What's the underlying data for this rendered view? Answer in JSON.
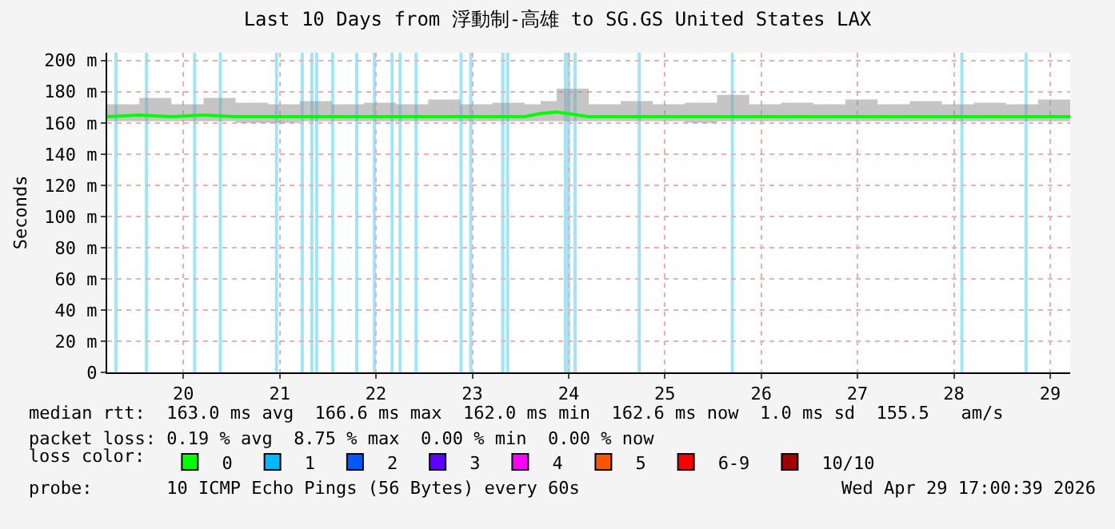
{
  "chart_data": {
    "type": "line",
    "title": "Last 10 Days from 浮動制-高雄 to SG.GS United States LAX",
    "ylabel": "Seconds",
    "legend_title": "loss color:",
    "legend": "bottom",
    "grid": true,
    "marker": "none",
    "line_style": "solid",
    "xlim": [
      "2026-04-19T05:00",
      "2026-04-29T05:00"
    ],
    "xticks": [
      {
        "value": "2026-04-20",
        "label": "20"
      },
      {
        "value": "2026-04-21",
        "label": "21"
      },
      {
        "value": "2026-04-22",
        "label": "22"
      },
      {
        "value": "2026-04-23",
        "label": "23"
      },
      {
        "value": "2026-04-24",
        "label": "24"
      },
      {
        "value": "2026-04-25",
        "label": "25"
      },
      {
        "value": "2026-04-26",
        "label": "26"
      },
      {
        "value": "2026-04-27",
        "label": "27"
      },
      {
        "value": "2026-04-28",
        "label": "28"
      },
      {
        "value": "2026-04-29",
        "label": "29"
      }
    ],
    "ylim": [
      0,
      205
    ],
    "yticks": [
      0,
      {
        "value": 20,
        "label": "20 m"
      },
      {
        "value": 40,
        "label": "40 m"
      },
      {
        "value": 60,
        "label": "60 m"
      },
      {
        "value": 80,
        "label": "80 m"
      },
      {
        "value": 100,
        "label": "100 m"
      },
      {
        "value": 120,
        "label": "120 m"
      },
      {
        "value": 140,
        "label": "140 m"
      },
      {
        "value": 160,
        "label": "160 m"
      },
      {
        "value": 180,
        "label": "180 m"
      },
      {
        "value": 200,
        "label": "200 m"
      }
    ],
    "x": [
      "2026-04-19T05:00",
      "2026-04-19T13:00",
      "2026-04-19T21:00",
      "2026-04-20T05:00",
      "2026-04-20T13:00",
      "2026-04-20T21:00",
      "2026-04-21T05:00",
      "2026-04-21T13:00",
      "2026-04-21T21:00",
      "2026-04-22T05:00",
      "2026-04-22T13:00",
      "2026-04-22T21:00",
      "2026-04-23T05:00",
      "2026-04-23T13:00",
      "2026-04-23T17:00",
      "2026-04-23T21:00",
      "2026-04-24T05:00",
      "2026-04-24T13:00",
      "2026-04-24T21:00",
      "2026-04-25T05:00",
      "2026-04-25T13:00",
      "2026-04-25T21:00",
      "2026-04-26T05:00",
      "2026-04-26T13:00",
      "2026-04-26T21:00",
      "2026-04-27T05:00",
      "2026-04-27T13:00",
      "2026-04-27T21:00",
      "2026-04-28T05:00",
      "2026-04-28T13:00",
      "2026-04-28T21:00",
      "2026-04-29T05:00"
    ],
    "series": [
      {
        "name": "0",
        "color": "#00ff00",
        "values": [
          164,
          165,
          164,
          165,
          164,
          164,
          164,
          164,
          164,
          164,
          164,
          164,
          164,
          164,
          166,
          167,
          164,
          164,
          164,
          164,
          164,
          164,
          164,
          164,
          164,
          164,
          164,
          164,
          164,
          164,
          164,
          164
        ],
        "lower": [
          161,
          161,
          161,
          161,
          160,
          160,
          161,
          161,
          161,
          161,
          161,
          161,
          161,
          161,
          161,
          161,
          161,
          161,
          161,
          160,
          161,
          161,
          161,
          161,
          161,
          161,
          161,
          161,
          161,
          161,
          161,
          161
        ],
        "upper": [
          172,
          176,
          172,
          176,
          173,
          172,
          174,
          172,
          173,
          172,
          175,
          172,
          173,
          172,
          174,
          182,
          172,
          174,
          172,
          173,
          178,
          172,
          173,
          172,
          175,
          172,
          174,
          172,
          173,
          172,
          175,
          172
        ]
      },
      {
        "name": "1",
        "color": "#00b8ff",
        "values": [
          null,
          null,
          null,
          null,
          null,
          null,
          null,
          null,
          null,
          null,
          null,
          null,
          null,
          null,
          null,
          null,
          null,
          null,
          null,
          null,
          null,
          null,
          null,
          null,
          null,
          null,
          null,
          null,
          null,
          null,
          null,
          null
        ]
      },
      {
        "name": "2",
        "color": "#0059ff",
        "values": [
          null,
          null,
          null,
          null,
          null,
          null,
          null,
          null,
          null,
          null,
          null,
          null,
          null,
          null,
          null,
          null,
          null,
          null,
          null,
          null,
          null,
          null,
          null,
          null,
          null,
          null,
          null,
          null,
          null,
          null,
          null,
          null
        ]
      },
      {
        "name": "3",
        "color": "#5e00ff",
        "values": [
          null,
          null,
          null,
          null,
          null,
          null,
          null,
          null,
          null,
          null,
          null,
          null,
          null,
          null,
          null,
          null,
          null,
          null,
          null,
          null,
          null,
          null,
          null,
          null,
          null,
          null,
          null,
          null,
          null,
          null,
          null,
          null
        ]
      },
      {
        "name": "4",
        "color": "#ff00ff",
        "values": [
          null,
          null,
          null,
          null,
          null,
          null,
          null,
          null,
          null,
          null,
          null,
          null,
          null,
          null,
          null,
          null,
          null,
          null,
          null,
          null,
          null,
          null,
          null,
          null,
          null,
          null,
          null,
          null,
          null,
          null,
          null,
          null
        ]
      },
      {
        "name": "5",
        "color": "#ff5500",
        "values": [
          null,
          null,
          null,
          null,
          null,
          null,
          null,
          null,
          null,
          null,
          null,
          null,
          null,
          null,
          null,
          null,
          null,
          null,
          null,
          null,
          null,
          null,
          null,
          null,
          null,
          null,
          null,
          null,
          null,
          null,
          null,
          null
        ]
      },
      {
        "name": "6-9",
        "color": "#ff0000",
        "values": [
          null,
          null,
          null,
          null,
          null,
          null,
          null,
          null,
          null,
          null,
          null,
          null,
          null,
          null,
          null,
          null,
          null,
          null,
          null,
          null,
          null,
          null,
          null,
          null,
          null,
          null,
          null,
          null,
          null,
          null,
          null,
          null
        ]
      },
      {
        "name": "10/10",
        "color": "#a10000",
        "values": [
          null,
          null,
          null,
          null,
          null,
          null,
          null,
          null,
          null,
          null,
          null,
          null,
          null,
          null,
          null,
          null,
          null,
          null,
          null,
          null,
          null,
          null,
          null,
          null,
          null,
          null,
          null,
          null,
          null,
          null,
          null,
          null
        ]
      }
    ],
    "ref_lines": [
      {
        "axis": "x",
        "value": "2026-04-19T07:12",
        "color": "#a0e4f8"
      },
      {
        "axis": "x",
        "value": "2026-04-19T14:48",
        "color": "#a0e4f8"
      },
      {
        "axis": "x",
        "value": "2026-04-20T02:48",
        "color": "#a0e4f8"
      },
      {
        "axis": "x",
        "value": "2026-04-20T09:12",
        "color": "#a0e4f8"
      },
      {
        "axis": "x",
        "value": "2026-04-20T23:12",
        "color": "#a0e4f8"
      },
      {
        "axis": "x",
        "value": "2026-04-21T05:36",
        "color": "#a0e4f8"
      },
      {
        "axis": "x",
        "value": "2026-04-21T08:00",
        "color": "#a0e4f8"
      },
      {
        "axis": "x",
        "value": "2026-04-21T09:12",
        "color": "#a0e4f8"
      },
      {
        "axis": "x",
        "value": "2026-04-21T13:12",
        "color": "#a0e4f8"
      },
      {
        "axis": "x",
        "value": "2026-04-21T19:12",
        "color": "#a0e4f8"
      },
      {
        "axis": "x",
        "value": "2026-04-21T23:36",
        "color": "#a0e4f8"
      },
      {
        "axis": "x",
        "value": "2026-04-22T04:00",
        "color": "#a0e4f8"
      },
      {
        "axis": "x",
        "value": "2026-04-22T06:00",
        "color": "#a0e4f8"
      },
      {
        "axis": "x",
        "value": "2026-04-22T10:00",
        "color": "#a0e4f8"
      },
      {
        "axis": "x",
        "value": "2026-04-22T21:12",
        "color": "#a0e4f8"
      },
      {
        "axis": "x",
        "value": "2026-04-22T23:36",
        "color": "#a0e4f8"
      },
      {
        "axis": "x",
        "value": "2026-04-23T07:36",
        "color": "#a0e4f8"
      },
      {
        "axis": "x",
        "value": "2026-04-23T08:48",
        "color": "#a0e4f8"
      },
      {
        "axis": "x",
        "value": "2026-04-23T23:12",
        "color": "#a0e4f8"
      },
      {
        "axis": "x",
        "value": "2026-04-24T00:00",
        "color": "#a0e4f8"
      },
      {
        "axis": "x",
        "value": "2026-04-24T01:36",
        "color": "#a0e4f8"
      },
      {
        "axis": "x",
        "value": "2026-04-24T17:36",
        "color": "#a0e4f8"
      },
      {
        "axis": "x",
        "value": "2026-04-25T16:48",
        "color": "#a0e4f8"
      },
      {
        "axis": "x",
        "value": "2026-04-28T02:00",
        "color": "#a0e4f8"
      },
      {
        "axis": "x",
        "value": "2026-04-28T18:00",
        "color": "#a0e4f8"
      }
    ],
    "annotations": [
      "median rtt:  163.0 ms avg  166.6 ms max  162.0 ms min  162.6 ms now  1.0 ms sd  155.5   am/s",
      "packet loss: 0.19 % avg  8.75 % max  0.00 % min  0.00 % now",
      "probe:       10 ICMP Echo Pings (56 Bytes) every 60s",
      "Wed Apr 29 17:00:39 2026"
    ]
  }
}
